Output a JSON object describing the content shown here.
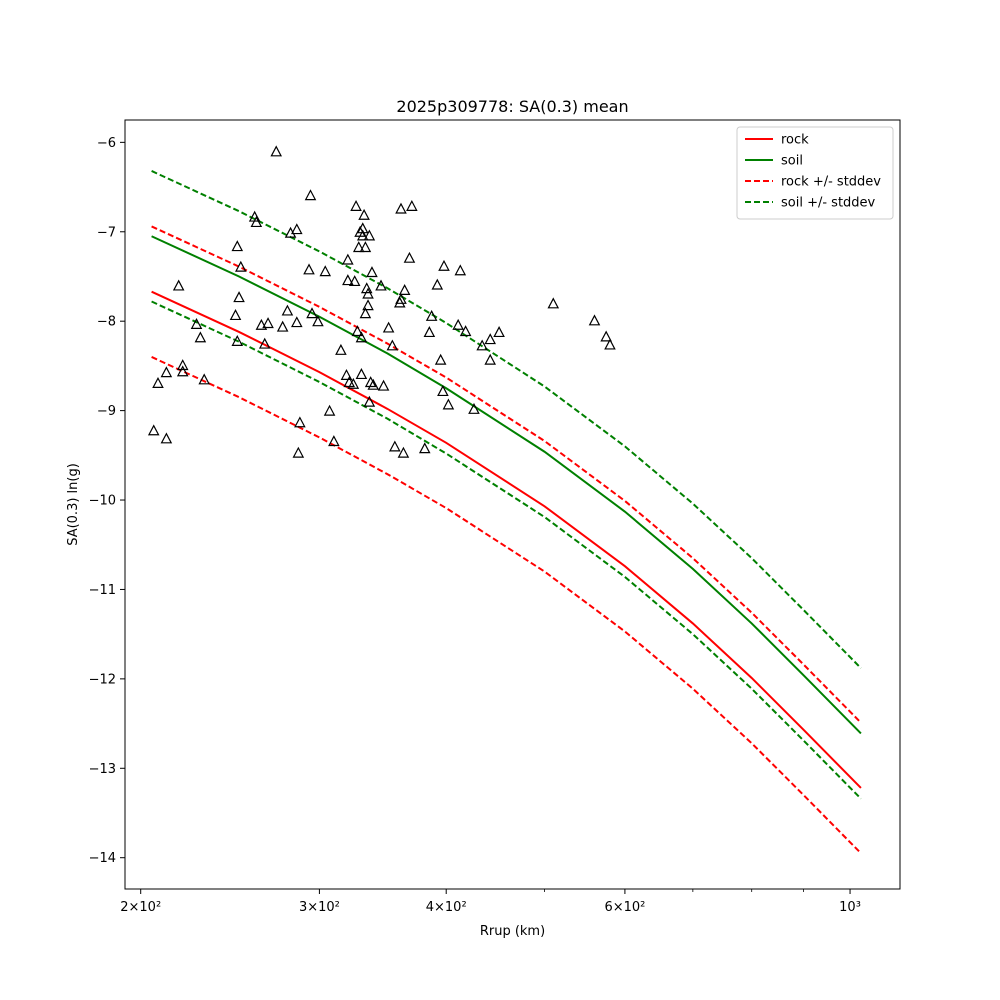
{
  "chart_data": {
    "type": "line",
    "title": "2025p309778: SA(0.3) mean",
    "xlabel": "Rrup (km)",
    "ylabel": "SA(0.3) ln(g)",
    "xscale": "log",
    "xlim": [
      193,
      1120
    ],
    "ylim": [
      -14.35,
      -5.75
    ],
    "grid": false,
    "legend_position": "top-right",
    "x_ticks": [
      {
        "value": 200,
        "label": "2×10²"
      },
      {
        "value": 300,
        "label": "3×10²"
      },
      {
        "value": 400,
        "label": "4×10²"
      },
      {
        "value": 600,
        "label": "6×10²"
      },
      {
        "value": 1000,
        "label": "10³"
      }
    ],
    "x_minor_ticks": [
      500,
      700,
      800,
      900
    ],
    "y_ticks": [
      {
        "value": -6,
        "label": "−6"
      },
      {
        "value": -7,
        "label": "−7"
      },
      {
        "value": -8,
        "label": "−8"
      },
      {
        "value": -9,
        "label": "−9"
      },
      {
        "value": -10,
        "label": "−10"
      },
      {
        "value": -11,
        "label": "−11"
      },
      {
        "value": -12,
        "label": "−12"
      },
      {
        "value": -13,
        "label": "−13"
      },
      {
        "value": -14,
        "label": "−14"
      }
    ],
    "series": [
      {
        "name": "rock",
        "color": "#ff0000",
        "style": "solid",
        "x": [
          205,
          250,
          300,
          350,
          400,
          500,
          600,
          700,
          800,
          900,
          1025
        ],
        "y": [
          -7.67,
          -8.12,
          -8.57,
          -8.98,
          -9.36,
          -10.07,
          -10.74,
          -11.38,
          -11.99,
          -12.57,
          -13.22
        ]
      },
      {
        "name": "soil",
        "color": "#008000",
        "style": "solid",
        "x": [
          205,
          250,
          300,
          350,
          400,
          500,
          600,
          700,
          800,
          900,
          1025
        ],
        "y": [
          -7.05,
          -7.5,
          -7.95,
          -8.36,
          -8.75,
          -9.46,
          -10.13,
          -10.77,
          -11.38,
          -11.96,
          -12.61
        ]
      },
      {
        "name": "rock +/- stddev",
        "color": "#ff0000",
        "style": "dashed",
        "x": [
          205,
          250,
          300,
          350,
          400,
          500,
          600,
          700,
          800,
          900,
          1025
        ],
        "y": [
          -6.94,
          -7.39,
          -7.84,
          -8.25,
          -8.63,
          -9.34,
          -10.01,
          -10.65,
          -11.26,
          -11.84,
          -12.49
        ]
      },
      {
        "name": "",
        "color": "#ff0000",
        "style": "dashed",
        "x": [
          205,
          250,
          300,
          350,
          400,
          500,
          600,
          700,
          800,
          900,
          1025
        ],
        "y": [
          -8.4,
          -8.85,
          -9.3,
          -9.71,
          -10.09,
          -10.8,
          -11.47,
          -12.11,
          -12.72,
          -13.3,
          -13.95
        ]
      },
      {
        "name": "soil +/- stddev",
        "color": "#008000",
        "style": "dashed",
        "x": [
          205,
          250,
          300,
          350,
          400,
          500,
          600,
          700,
          800,
          900,
          1025
        ],
        "y": [
          -6.32,
          -6.77,
          -7.22,
          -7.63,
          -8.02,
          -8.73,
          -9.4,
          -10.04,
          -10.65,
          -11.23,
          -11.88
        ]
      },
      {
        "name": "",
        "color": "#008000",
        "style": "dashed",
        "x": [
          205,
          250,
          300,
          350,
          400,
          500,
          600,
          700,
          800,
          900,
          1025
        ],
        "y": [
          -7.78,
          -8.23,
          -8.68,
          -9.09,
          -9.48,
          -10.19,
          -10.86,
          -11.5,
          -12.11,
          -12.69,
          -13.34
        ]
      }
    ],
    "observations": {
      "marker": "triangle",
      "points": [
        [
          206,
          -9.23
        ],
        [
          208,
          -8.7
        ],
        [
          212,
          -8.58
        ],
        [
          212,
          -9.32
        ],
        [
          218,
          -7.61
        ],
        [
          220,
          -8.5
        ],
        [
          220,
          -8.57
        ],
        [
          227,
          -8.04
        ],
        [
          229,
          -8.19
        ],
        [
          231,
          -8.66
        ],
        [
          248,
          -7.94
        ],
        [
          249,
          -8.23
        ],
        [
          249,
          -7.17
        ],
        [
          250,
          -7.74
        ],
        [
          251,
          -7.4
        ],
        [
          259,
          -6.84
        ],
        [
          260,
          -6.9
        ],
        [
          263,
          -8.05
        ],
        [
          265,
          -8.26
        ],
        [
          267,
          -8.03
        ],
        [
          272,
          -6.11
        ],
        [
          276,
          -8.07
        ],
        [
          279,
          -7.89
        ],
        [
          281,
          -7.02
        ],
        [
          285,
          -8.02
        ],
        [
          285,
          -6.98
        ],
        [
          286,
          -9.48
        ],
        [
          287,
          -9.14
        ],
        [
          293,
          -7.43
        ],
        [
          294,
          -6.6
        ],
        [
          295,
          -7.92
        ],
        [
          299,
          -8.01
        ],
        [
          304,
          -7.45
        ],
        [
          307,
          -9.01
        ],
        [
          310,
          -9.35
        ],
        [
          315,
          -8.33
        ],
        [
          319,
          -8.61
        ],
        [
          320,
          -7.32
        ],
        [
          320,
          -7.55
        ],
        [
          321,
          -8.69
        ],
        [
          324,
          -8.71
        ],
        [
          325,
          -7.56
        ],
        [
          326,
          -6.72
        ],
        [
          327,
          -8.12
        ],
        [
          328,
          -7.18
        ],
        [
          329,
          -7.01
        ],
        [
          330,
          -8.6
        ],
        [
          330,
          -8.19
        ],
        [
          331,
          -6.97
        ],
        [
          331,
          -7.05
        ],
        [
          332,
          -6.82
        ],
        [
          333,
          -7.92
        ],
        [
          333,
          -7.18
        ],
        [
          334,
          -7.64
        ],
        [
          335,
          -7.7
        ],
        [
          335,
          -7.83
        ],
        [
          336,
          -7.05
        ],
        [
          336,
          -8.91
        ],
        [
          337,
          -8.69
        ],
        [
          338,
          -7.46
        ],
        [
          339,
          -8.72
        ],
        [
          345,
          -7.61
        ],
        [
          347,
          -8.73
        ],
        [
          351,
          -8.08
        ],
        [
          354,
          -8.28
        ],
        [
          356,
          -9.41
        ],
        [
          360,
          -7.8
        ],
        [
          361,
          -7.76
        ],
        [
          361,
          -6.75
        ],
        [
          363,
          -9.48
        ],
        [
          364,
          -7.66
        ],
        [
          368,
          -7.3
        ],
        [
          370,
          -6.72
        ],
        [
          381,
          -9.43
        ],
        [
          385,
          -8.13
        ],
        [
          387,
          -7.95
        ],
        [
          392,
          -7.6
        ],
        [
          395,
          -8.44
        ],
        [
          397,
          -8.79
        ],
        [
          398,
          -7.39
        ],
        [
          402,
          -8.94
        ],
        [
          411,
          -8.05
        ],
        [
          413,
          -7.44
        ],
        [
          418,
          -8.12
        ],
        [
          426,
          -8.99
        ],
        [
          434,
          -8.28
        ],
        [
          442,
          -8.44
        ],
        [
          442,
          -8.21
        ],
        [
          451,
          -8.13
        ],
        [
          510,
          -7.81
        ],
        [
          560,
          -8.0
        ],
        [
          575,
          -8.18
        ],
        [
          580,
          -8.27
        ]
      ]
    }
  }
}
